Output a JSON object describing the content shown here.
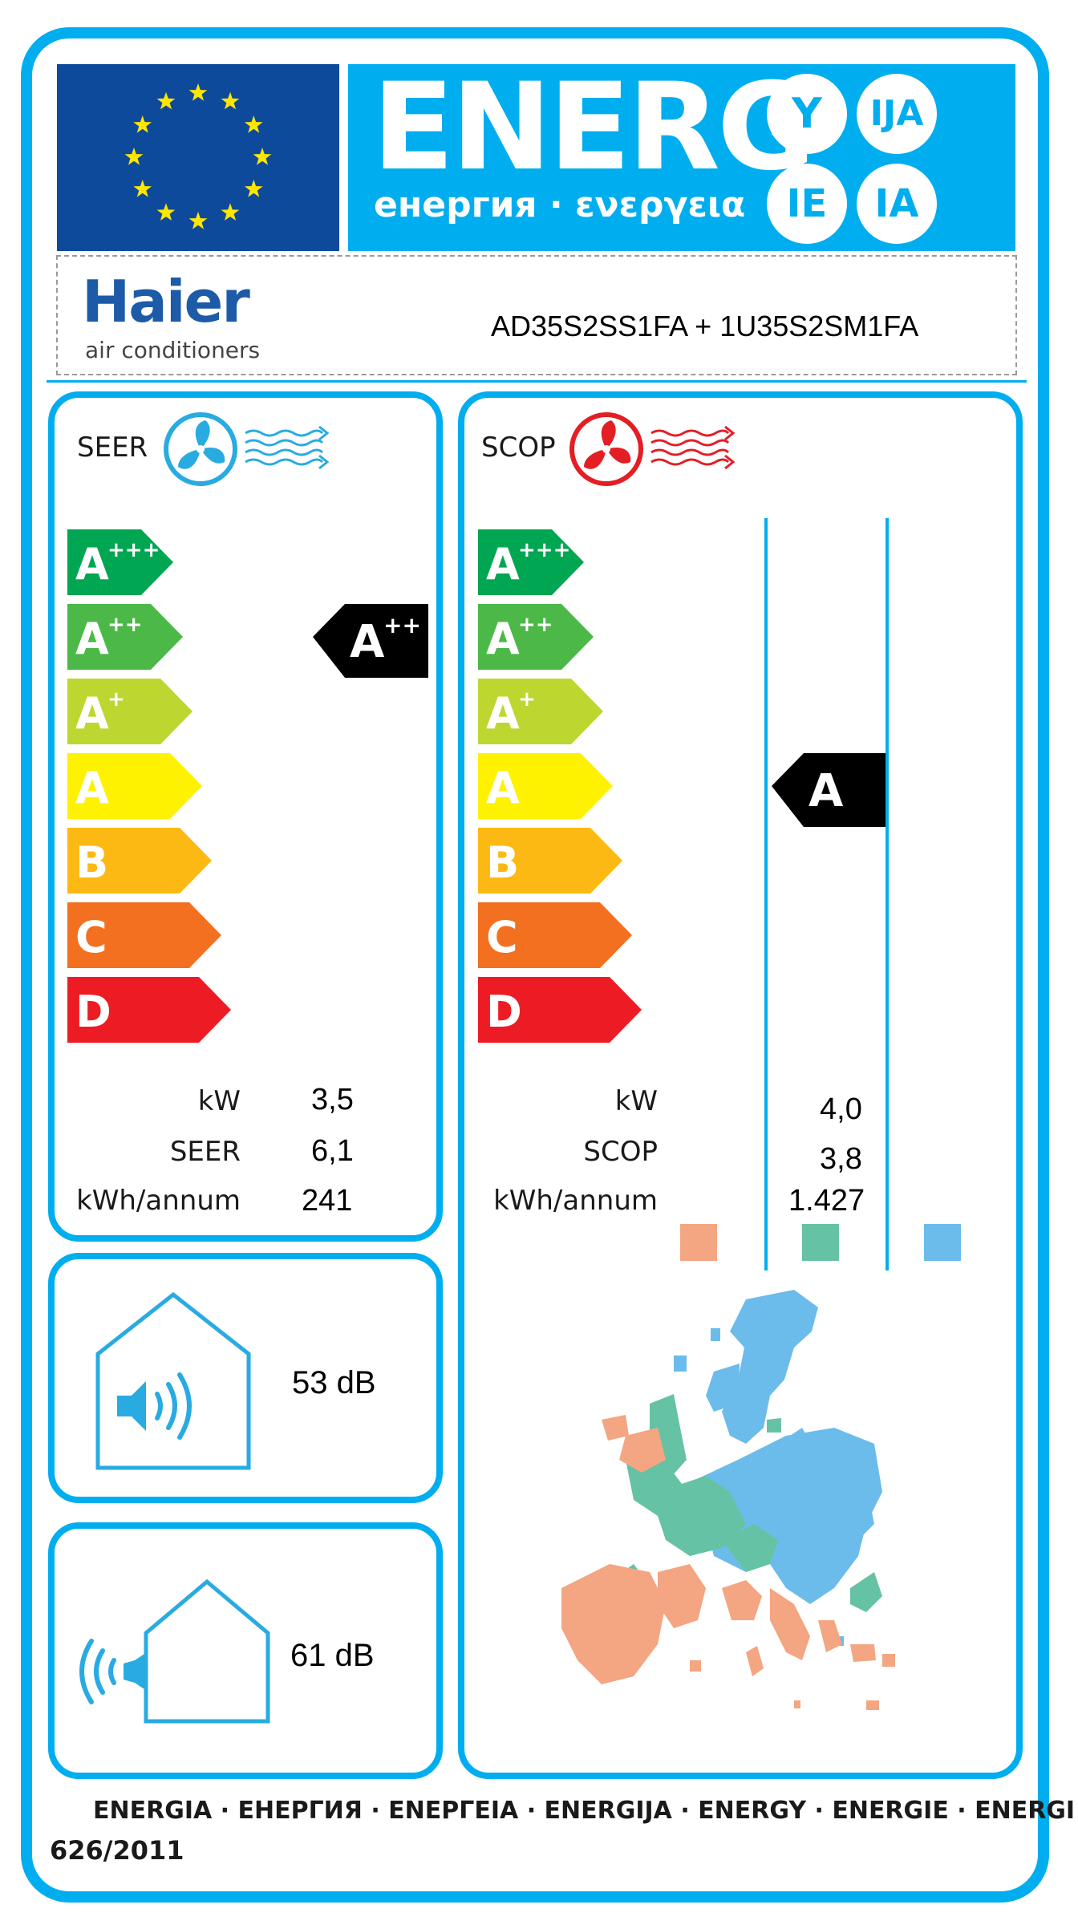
{
  "header": {
    "title": "ENERG",
    "subtitle": "енергия · ενεργεια",
    "suffixes": [
      "Y",
      "IJA",
      "IE",
      "IA"
    ],
    "eu_flag_star_count": 12,
    "colors": {
      "accent": "#00AEEF",
      "eu_blue": "#0E4A9C",
      "eu_star": "#FFE600"
    }
  },
  "supplier": {
    "brand": "Haier",
    "tagline": "air conditioners",
    "model": "AD35S2SS1FA + 1U35S2SM1FA"
  },
  "classes": [
    {
      "letter": "A",
      "sup": "+++",
      "color": "#00A651"
    },
    {
      "letter": "A",
      "sup": "++",
      "color": "#4CB848"
    },
    {
      "letter": "A",
      "sup": "+",
      "color": "#BED630"
    },
    {
      "letter": "A",
      "sup": "",
      "color": "#FFF200"
    },
    {
      "letter": "B",
      "sup": "",
      "color": "#FDB913"
    },
    {
      "letter": "C",
      "sup": "",
      "color": "#F37021"
    },
    {
      "letter": "D",
      "sup": "",
      "color": "#ED1C24"
    }
  ],
  "cooling": {
    "label": "SEER",
    "icon": "cooling-fan-icon",
    "rating": {
      "letter": "A",
      "sup": "++"
    },
    "rows": [
      {
        "unit": "kW",
        "value": "3,5"
      },
      {
        "unit": "SEER",
        "value": "6,1"
      },
      {
        "unit": "kWh/annum",
        "value": "241"
      }
    ]
  },
  "heating": {
    "label": "SCOP",
    "icon": "heating-fan-icon",
    "rating": {
      "letter": "A",
      "sup": ""
    },
    "rows": [
      {
        "unit": "kW",
        "value": "4,0"
      },
      {
        "unit": "SCOP",
        "value": "3,8"
      },
      {
        "unit": "kWh/annum",
        "value": "1.427"
      }
    ],
    "climate_zones": [
      {
        "name": "warmer",
        "color": "#F4A582"
      },
      {
        "name": "average",
        "color": "#66C2A4"
      },
      {
        "name": "colder",
        "color": "#6BBCEB"
      }
    ]
  },
  "noise": {
    "indoor": {
      "icon": "indoor-sound-icon",
      "value": "53 dB"
    },
    "outdoor": {
      "icon": "outdoor-sound-icon",
      "value": "61 dB"
    }
  },
  "footer": {
    "languages": "ENERGIA · ЕНЕРГИЯ · ΕΝΕΡΓΕΙΑ · ENERGIJA · ENERGY · ENERGIE · ENERGI",
    "regulation": "626/2011"
  }
}
